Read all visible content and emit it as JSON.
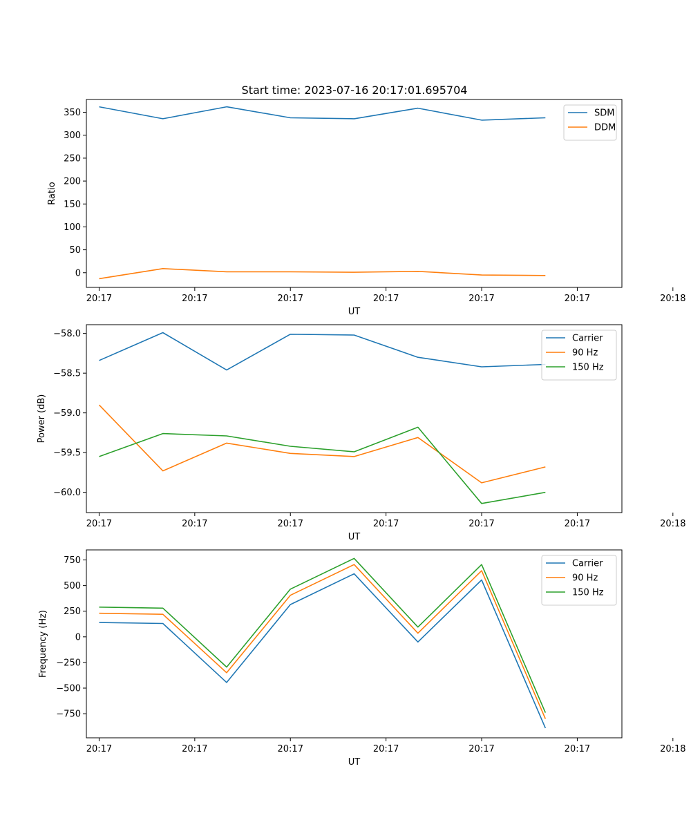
{
  "figure": {
    "title": "Start time: 2023-07-16 20:17:01.695704"
  },
  "chart_data": [
    {
      "type": "line",
      "title": "Start time: 2023-07-16 20:17:01.695704",
      "xlabel": "UT",
      "ylabel": "Ratio",
      "x": [
        1,
        2,
        3,
        4,
        5,
        6,
        7,
        8
      ],
      "xlim": [
        0.8,
        9.2
      ],
      "xticks": [
        1,
        2.5,
        4,
        5.5,
        7,
        8.5,
        10
      ],
      "xticklabels": [
        "20:17",
        "20:17",
        "20:17",
        "20:17",
        "20:17",
        "20:17",
        "20:18"
      ],
      "ylim": [
        -32,
        378
      ],
      "yticks": [
        0,
        50,
        100,
        150,
        200,
        250,
        300,
        350
      ],
      "yticklabels": [
        "0",
        "50",
        "100",
        "150",
        "200",
        "250",
        "300",
        "350"
      ],
      "legend_position": "top-right",
      "series": [
        {
          "name": "SDM",
          "color": "#1f77b4",
          "values": [
            362,
            336,
            362,
            338,
            336,
            359,
            333,
            338
          ]
        },
        {
          "name": "DDM",
          "color": "#ff7f0e",
          "values": [
            -13,
            9,
            2,
            2,
            1,
            3,
            -5,
            -6
          ]
        }
      ]
    },
    {
      "type": "line",
      "xlabel": "UT",
      "ylabel": "Power (dB)",
      "x": [
        1,
        2,
        3,
        4,
        5,
        6,
        7,
        8
      ],
      "xlim": [
        0.8,
        9.2
      ],
      "xticks": [
        1,
        2.5,
        4,
        5.5,
        7,
        8.5,
        10
      ],
      "xticklabels": [
        "20:17",
        "20:17",
        "20:17",
        "20:17",
        "20:17",
        "20:17",
        "20:18"
      ],
      "ylim": [
        -60.255,
        -57.89
      ],
      "yticks": [
        -60.0,
        -59.5,
        -59.0,
        -58.5,
        -58.0
      ],
      "yticklabels": [
        "−60.0",
        "−59.5",
        "−59.0",
        "−58.5",
        "−58.0"
      ],
      "legend_position": "top-right",
      "series": [
        {
          "name": "Carrier",
          "color": "#1f77b4",
          "values": [
            -58.34,
            -57.99,
            -58.46,
            -58.01,
            -58.02,
            -58.3,
            -58.42,
            -58.39
          ]
        },
        {
          "name": "90 Hz",
          "color": "#ff7f0e",
          "values": [
            -58.9,
            -59.73,
            -59.38,
            -59.51,
            -59.55,
            -59.31,
            -59.88,
            -59.68
          ]
        },
        {
          "name": "150 Hz",
          "color": "#2ca02c",
          "values": [
            -59.55,
            -59.26,
            -59.29,
            -59.42,
            -59.49,
            -59.18,
            -60.14,
            -60.0
          ]
        }
      ]
    },
    {
      "type": "line",
      "xlabel": "UT",
      "ylabel": "Frequency (Hz)",
      "x": [
        1,
        2,
        3,
        4,
        5,
        6,
        7,
        8
      ],
      "xlim": [
        0.8,
        9.2
      ],
      "xticks": [
        1,
        2.5,
        4,
        5.5,
        7,
        8.5,
        10
      ],
      "xticklabels": [
        "20:17",
        "20:17",
        "20:17",
        "20:17",
        "20:17",
        "20:17",
        "20:18"
      ],
      "ylim": [
        -985,
        848
      ],
      "yticks": [
        -750,
        -500,
        -250,
        0,
        250,
        500,
        750
      ],
      "yticklabels": [
        "−750",
        "−500",
        "−250",
        "0",
        "250",
        "500",
        "750"
      ],
      "legend_position": "top-right",
      "series": [
        {
          "name": "Carrier",
          "color": "#1f77b4",
          "values": [
            140,
            130,
            -445,
            315,
            615,
            -50,
            555,
            -890
          ]
        },
        {
          "name": "90 Hz",
          "color": "#ff7f0e",
          "values": [
            230,
            220,
            -350,
            405,
            705,
            35,
            645,
            -800
          ]
        },
        {
          "name": "150 Hz",
          "color": "#2ca02c",
          "values": [
            290,
            280,
            -295,
            465,
            765,
            95,
            705,
            -740
          ]
        }
      ]
    }
  ]
}
